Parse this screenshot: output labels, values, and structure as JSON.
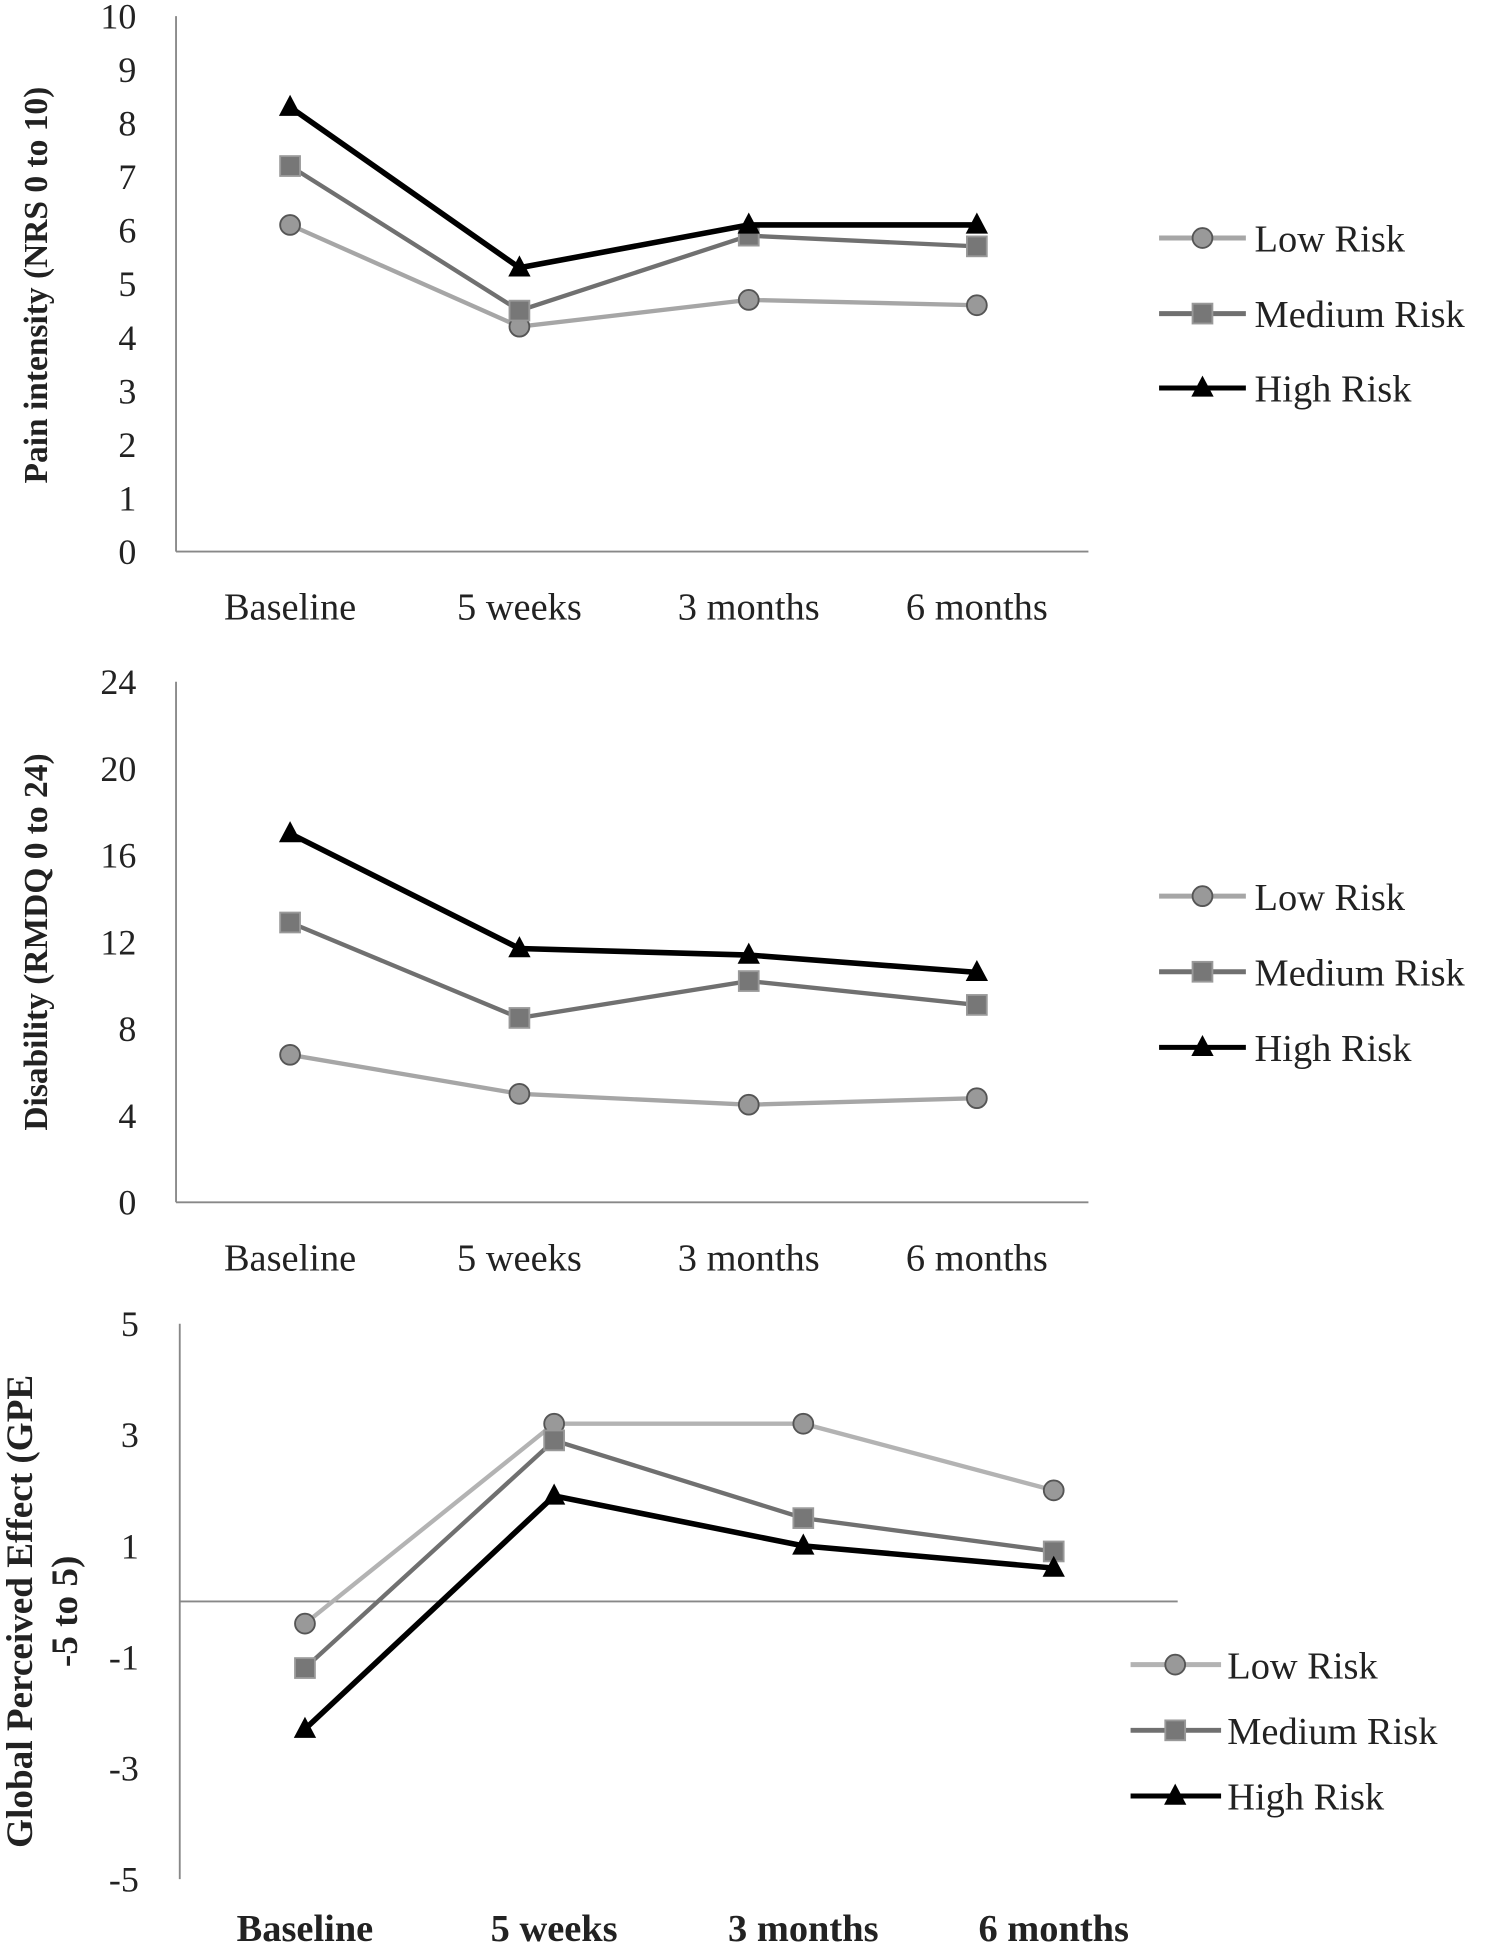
{
  "chart_data": [
    {
      "type": "line",
      "ylabel": "Pain intensity (NRS 0 to 10)",
      "categories": [
        "Baseline",
        "5 weeks",
        "3 months",
        "6 months"
      ],
      "ylim": [
        0,
        10
      ],
      "yticks": [
        0,
        1,
        2,
        3,
        4,
        5,
        6,
        7,
        8,
        9,
        10
      ],
      "grid": false,
      "legend": "right",
      "series": [
        {
          "name": "Low Risk",
          "marker": "circle",
          "color": "#a6a6a6",
          "values": [
            6.1,
            4.2,
            4.7,
            4.6
          ]
        },
        {
          "name": "Medium Risk",
          "marker": "square",
          "color": "#707070",
          "values": [
            7.2,
            4.5,
            5.9,
            5.7
          ]
        },
        {
          "name": "High Risk",
          "marker": "triangle",
          "color": "#000000",
          "values": [
            8.3,
            5.3,
            6.1,
            6.1
          ]
        }
      ]
    },
    {
      "type": "line",
      "ylabel": "Disability (RMDQ 0 to 24)",
      "categories": [
        "Baseline",
        "5 weeks",
        "3 months",
        "6 months"
      ],
      "ylim": [
        0,
        24
      ],
      "yticks": [
        0,
        4,
        8,
        12,
        16,
        20,
        24
      ],
      "grid": false,
      "legend": "right",
      "series": [
        {
          "name": "Low Risk",
          "marker": "circle",
          "color": "#a6a6a6",
          "values": [
            6.8,
            5.0,
            4.5,
            4.8
          ]
        },
        {
          "name": "Medium Risk",
          "marker": "square",
          "color": "#707070",
          "values": [
            12.9,
            8.5,
            10.2,
            9.1
          ]
        },
        {
          "name": "High Risk",
          "marker": "triangle",
          "color": "#000000",
          "values": [
            17.0,
            11.7,
            11.4,
            10.6
          ]
        }
      ]
    },
    {
      "type": "line",
      "ylabel": [
        "Global Perceived Effect (GPE",
        "-5 to 5)"
      ],
      "categories": [
        "Baseline",
        "5 weeks",
        "3 months",
        "6 months"
      ],
      "ylim": [
        -5,
        5
      ],
      "yticks": [
        -5,
        -3,
        -1,
        1,
        3,
        5
      ],
      "grid": false,
      "legend": "bottom-right",
      "series": [
        {
          "name": "Low Risk",
          "marker": "circle",
          "color": "#b3b3b3",
          "values": [
            -0.4,
            3.2,
            3.2,
            2.0
          ]
        },
        {
          "name": "Medium Risk",
          "marker": "square",
          "color": "#707070",
          "values": [
            -1.2,
            2.9,
            1.5,
            0.9
          ]
        },
        {
          "name": "High Risk",
          "marker": "triangle",
          "color": "#000000",
          "values": [
            -2.3,
            1.9,
            1.0,
            0.6
          ]
        }
      ]
    }
  ]
}
